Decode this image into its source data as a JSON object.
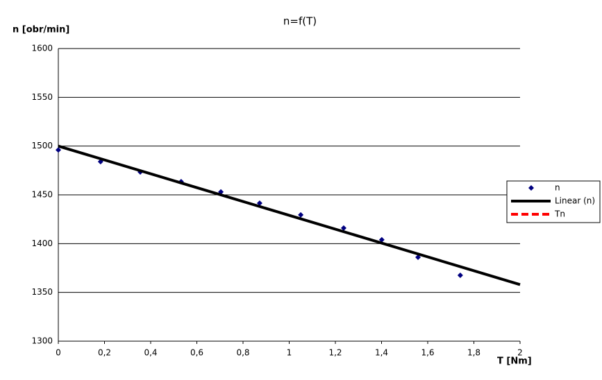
{
  "chart_data": {
    "type": "scatter",
    "title": "n=f(T)",
    "y_label": "n [obr/min]",
    "x_label": "T [Nm]",
    "xlim": [
      0,
      2
    ],
    "ylim": [
      1300,
      1600
    ],
    "xticks": [
      0,
      {
        "value": 0.2,
        "label": "0,2"
      },
      {
        "value": 0.4,
        "label": "0,4"
      },
      {
        "value": 0.6,
        "label": "0,6"
      },
      {
        "value": 0.8,
        "label": "0,8"
      },
      1,
      {
        "value": 1.2,
        "label": "1,2"
      },
      {
        "value": 1.4,
        "label": "1,4"
      },
      {
        "value": 1.6,
        "label": "1,6"
      },
      {
        "value": 1.8,
        "label": "1,8"
      },
      2
    ],
    "yticks": [
      1300,
      1350,
      1400,
      1450,
      1500,
      1550,
      1600
    ],
    "grid": true,
    "legend": "right",
    "series": [
      {
        "name": "n",
        "color": "#000080",
        "mode": "markers",
        "x": [
          0,
          0.183,
          0.355,
          0.532,
          0.704,
          0.872,
          1.05,
          1.236,
          1.401,
          1.558,
          1.741
        ],
        "values": [
          1496,
          1484,
          1473.5,
          1463.5,
          1453,
          1441.5,
          1429.5,
          1416,
          1404,
          1386,
          1367.5
        ]
      },
      {
        "name": "Linear (n)",
        "color": "#000000",
        "mode": "line",
        "x": [
          0,
          2
        ],
        "values": [
          1500,
          1358
        ]
      },
      {
        "name": "Tn",
        "color": "#ff0000",
        "mode": "dashed",
        "x": [],
        "values": []
      }
    ]
  }
}
